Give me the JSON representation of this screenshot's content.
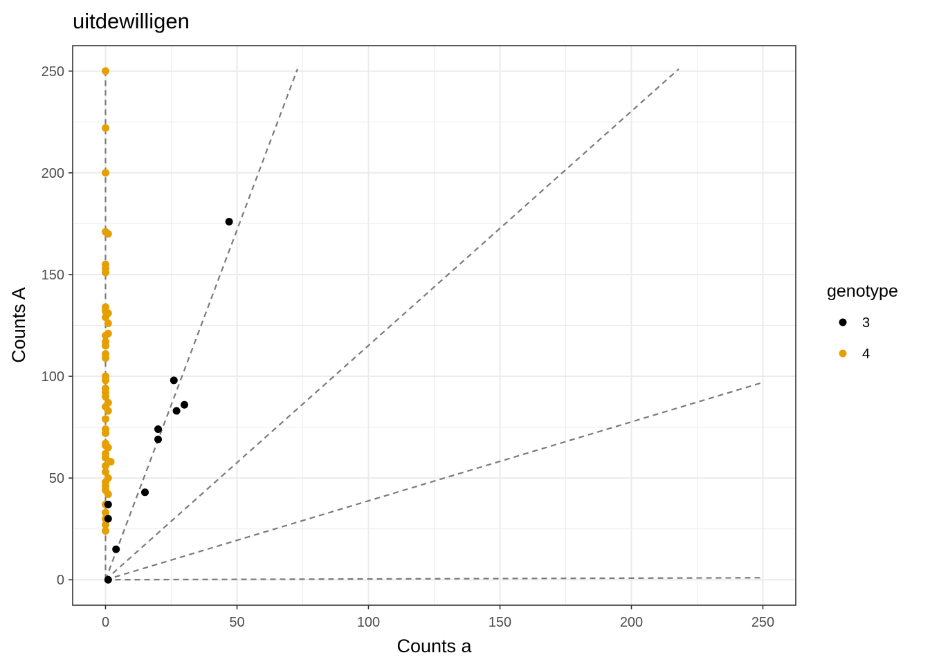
{
  "chart_data": {
    "type": "scatter",
    "title": "uitdewilligen",
    "xlabel": "Counts a",
    "ylabel": "Counts A",
    "xlim": [
      -12.5,
      262.5
    ],
    "ylim": [
      -12.5,
      262.5
    ],
    "x_ticks": [
      0,
      50,
      100,
      150,
      200,
      250
    ],
    "y_ticks": [
      0,
      50,
      100,
      150,
      200,
      250
    ],
    "x_tick_labels": [
      "0",
      "50",
      "100",
      "150",
      "200",
      "250"
    ],
    "y_tick_labels": [
      "0",
      "50",
      "100",
      "150",
      "200",
      "250"
    ],
    "grid": true,
    "legend": {
      "title": "genotype",
      "position": "right",
      "entries": [
        {
          "label": "3",
          "color": "#000000"
        },
        {
          "label": "4",
          "color": "#E69F00"
        }
      ]
    },
    "reference_lines": [
      {
        "ratio_a_over_total": 0.0,
        "x": [
          0,
          0
        ],
        "y": [
          0,
          250
        ]
      },
      {
        "ratio_a_over_total": 0.225,
        "x": [
          0,
          73
        ],
        "y": [
          0,
          251
        ]
      },
      {
        "ratio_a_over_total": 0.465,
        "x": [
          0,
          218
        ],
        "y": [
          0,
          251
        ]
      },
      {
        "ratio_a_over_total": 0.72,
        "x": [
          0,
          250
        ],
        "y": [
          0,
          97
        ]
      },
      {
        "ratio_a_over_total": 1.0,
        "x": [
          0,
          250
        ],
        "y": [
          0,
          1
        ]
      }
    ],
    "series": [
      {
        "name": "4",
        "color": "#E69F00",
        "points": [
          [
            0,
            250
          ],
          [
            0,
            222
          ],
          [
            0,
            200
          ],
          [
            0,
            171
          ],
          [
            1,
            170
          ],
          [
            0,
            155
          ],
          [
            0,
            153
          ],
          [
            0,
            151
          ],
          [
            0,
            134
          ],
          [
            0,
            132
          ],
          [
            1,
            131
          ],
          [
            0,
            129
          ],
          [
            1,
            126
          ],
          [
            1,
            121
          ],
          [
            0,
            120
          ],
          [
            0,
            117
          ],
          [
            0,
            115
          ],
          [
            0,
            111
          ],
          [
            0,
            109
          ],
          [
            0,
            100
          ],
          [
            0,
            98
          ],
          [
            0,
            94
          ],
          [
            0,
            92
          ],
          [
            0,
            90
          ],
          [
            1,
            87
          ],
          [
            0,
            85
          ],
          [
            1,
            83
          ],
          [
            0,
            79
          ],
          [
            0,
            74
          ],
          [
            0,
            72
          ],
          [
            0,
            67
          ],
          [
            0,
            66
          ],
          [
            1,
            65
          ],
          [
            0,
            62
          ],
          [
            0,
            60
          ],
          [
            2,
            58
          ],
          [
            0,
            56
          ],
          [
            0,
            53
          ],
          [
            1,
            50
          ],
          [
            0,
            48
          ],
          [
            0,
            46
          ],
          [
            0,
            44
          ],
          [
            1,
            42
          ],
          [
            0,
            37
          ],
          [
            0,
            33
          ],
          [
            0,
            30
          ],
          [
            0,
            27
          ],
          [
            0,
            24
          ]
        ]
      },
      {
        "name": "3",
        "color": "#000000",
        "points": [
          [
            47,
            176
          ],
          [
            26,
            98
          ],
          [
            30,
            86
          ],
          [
            27,
            83
          ],
          [
            20,
            74
          ],
          [
            20,
            69
          ],
          [
            15,
            43
          ],
          [
            1,
            37
          ],
          [
            1,
            30
          ],
          [
            4,
            15
          ],
          [
            1,
            0
          ]
        ]
      }
    ]
  }
}
